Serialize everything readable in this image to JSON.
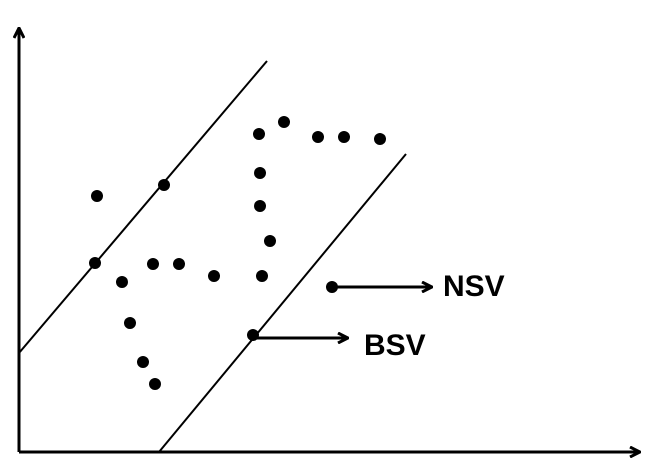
{
  "labels": {
    "nsv": "NSV",
    "bsv": "BSV"
  },
  "colors": {
    "ink": "#000000",
    "background": "#ffffff"
  }
}
